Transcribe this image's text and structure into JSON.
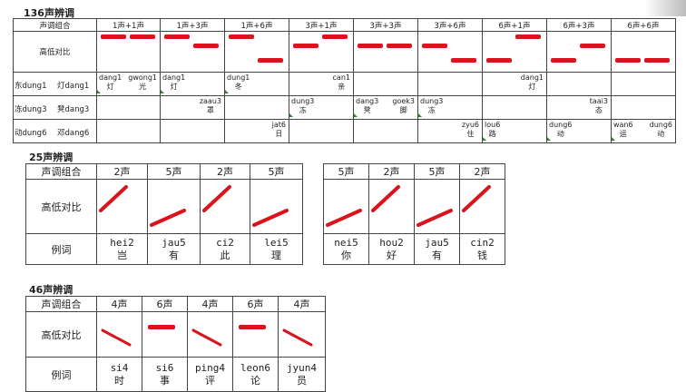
{
  "section1": {
    "title": "136声辨调",
    "header_label": "声调组合",
    "compare_label": "高低对比",
    "combos": [
      "1声+1声",
      "1声+3声",
      "1声+6声",
      "3声+1声",
      "3声+3声",
      "3声+6声",
      "6声+1声",
      "6声+3声",
      "6声+6声"
    ],
    "rows": [
      {
        "label_a": "东dung1",
        "label_b": "灯dang1",
        "words": [
          {
            "col": 0,
            "py": "dang1",
            "hz": "灯",
            "align": "left"
          },
          {
            "col": 0,
            "py": "gwong1",
            "hz": "光",
            "align": "right"
          },
          {
            "col": 1,
            "py": "dang1",
            "hz": "灯",
            "align": "left"
          },
          {
            "col": 2,
            "py": "dung1",
            "hz": "冬",
            "align": "left"
          },
          {
            "col": 3,
            "py": "can1",
            "hz": "亲",
            "align": "right"
          },
          {
            "col": 6,
            "py": "dang1",
            "hz": "灯",
            "align": "right"
          }
        ]
      },
      {
        "label_a": "冻dung3",
        "label_b": "凳dang3",
        "words": [
          {
            "col": 1,
            "py": "zaau3",
            "hz": "罩",
            "align": "right"
          },
          {
            "col": 3,
            "py": "dung3",
            "hz": "冻",
            "align": "left"
          },
          {
            "col": 4,
            "py": "dang3",
            "hz": "凳",
            "align": "left"
          },
          {
            "col": 4,
            "py": "goek3",
            "hz": "脚",
            "align": "right"
          },
          {
            "col": 5,
            "py": "dung3",
            "hz": "冻",
            "align": "left"
          },
          {
            "col": 7,
            "py": "taai3",
            "hz": "态",
            "align": "right"
          }
        ]
      },
      {
        "label_a": "动dung6",
        "label_b": "邓dang6",
        "words": [
          {
            "col": 2,
            "py": "jat6",
            "hz": "日",
            "align": "right"
          },
          {
            "col": 5,
            "py": "zyu6",
            "hz": "住",
            "align": "right"
          },
          {
            "col": 6,
            "py": "lou6",
            "hz": "路",
            "align": "left"
          },
          {
            "col": 7,
            "py": "dung6",
            "hz": "动",
            "align": "left"
          },
          {
            "col": 8,
            "py": "wan6",
            "hz": "运",
            "align": "left"
          },
          {
            "col": 8,
            "py": "dung6",
            "hz": "动",
            "align": "right"
          }
        ]
      }
    ],
    "bar_levels": [
      [
        1,
        1
      ],
      [
        1,
        3
      ],
      [
        1,
        6
      ],
      [
        3,
        1
      ],
      [
        3,
        3
      ],
      [
        3,
        6
      ],
      [
        6,
        1
      ],
      [
        6,
        3
      ],
      [
        6,
        6
      ]
    ]
  },
  "section2": {
    "title": "25声辨调",
    "header_label": "声调组合",
    "compare_label": "高低对比",
    "example_label": "例词",
    "left": [
      {
        "tone": "2声",
        "py": "hei2",
        "hz": "岂"
      },
      {
        "tone": "5声",
        "py": "jau5",
        "hz": "有"
      },
      {
        "tone": "2声",
        "py": "ci2",
        "hz": "此"
      },
      {
        "tone": "5声",
        "py": "lei5",
        "hz": "理"
      }
    ],
    "right": [
      {
        "tone": "5声",
        "py": "nei5",
        "hz": "你"
      },
      {
        "tone": "2声",
        "py": "hou2",
        "hz": "好"
      },
      {
        "tone": "5声",
        "py": "jau5",
        "hz": "有"
      },
      {
        "tone": "2声",
        "py": "cin2",
        "hz": "钱"
      }
    ]
  },
  "section3": {
    "title": "46声辨调",
    "header_label": "声调组合",
    "compare_label": "高低对比",
    "example_label": "例词",
    "items": [
      {
        "tone": "4声",
        "py": "si4",
        "hz": "时"
      },
      {
        "tone": "6声",
        "py": "si6",
        "hz": "事"
      },
      {
        "tone": "4声",
        "py": "ping4",
        "hz": "评"
      },
      {
        "tone": "6声",
        "py": "leon6",
        "hz": "论"
      },
      {
        "tone": "4声",
        "py": "jyun4",
        "hz": "员"
      }
    ]
  },
  "colors": {
    "tone_mark": "#d9141c",
    "marker": "#2a8a2a"
  }
}
